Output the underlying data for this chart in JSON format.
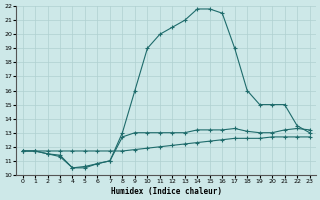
{
  "xlabel": "Humidex (Indice chaleur)",
  "background_color": "#cde8e8",
  "grid_color": "#b0d0d0",
  "line_color": "#1e6b6b",
  "xlim": [
    -0.5,
    23.5
  ],
  "ylim": [
    10,
    22
  ],
  "x_ticks": [
    0,
    1,
    2,
    3,
    4,
    5,
    6,
    7,
    8,
    9,
    10,
    11,
    12,
    13,
    14,
    15,
    16,
    17,
    18,
    19,
    20,
    21,
    22,
    23
  ],
  "y_ticks": [
    10,
    11,
    12,
    13,
    14,
    15,
    16,
    17,
    18,
    19,
    20,
    21,
    22
  ],
  "line_peak_x": [
    0,
    1,
    2,
    3,
    4,
    5,
    6,
    7,
    8,
    9,
    10,
    11,
    12,
    13,
    14,
    15,
    16,
    17,
    18,
    19,
    20,
    21,
    22,
    23
  ],
  "line_peak_y": [
    11.7,
    11.7,
    11.5,
    11.4,
    10.5,
    10.5,
    10.8,
    11.0,
    13.0,
    16.0,
    19.0,
    20.0,
    20.5,
    21.0,
    21.8,
    21.8,
    21.5,
    19.0,
    16.0,
    15.0,
    15.0,
    15.0,
    13.5,
    13.0
  ],
  "line_mid_x": [
    0,
    1,
    2,
    3,
    4,
    5,
    6,
    7,
    8,
    9,
    10,
    11,
    12,
    13,
    14,
    15,
    16,
    17,
    18,
    19,
    20,
    21,
    22,
    23
  ],
  "line_mid_y": [
    11.7,
    11.7,
    11.5,
    11.3,
    10.5,
    10.6,
    10.8,
    11.0,
    12.7,
    13.0,
    13.0,
    13.0,
    13.0,
    13.0,
    13.2,
    13.2,
    13.2,
    13.3,
    13.1,
    13.0,
    13.0,
    13.2,
    13.3,
    13.2
  ],
  "line_flat_x": [
    0,
    1,
    2,
    3,
    4,
    5,
    6,
    7,
    8,
    9,
    10,
    11,
    12,
    13,
    14,
    15,
    16,
    17,
    18,
    19,
    20,
    21,
    22,
    23
  ],
  "line_flat_y": [
    11.7,
    11.7,
    11.7,
    11.7,
    11.7,
    11.7,
    11.7,
    11.7,
    11.7,
    11.8,
    11.9,
    12.0,
    12.1,
    12.2,
    12.3,
    12.4,
    12.5,
    12.6,
    12.6,
    12.6,
    12.7,
    12.7,
    12.7,
    12.7
  ]
}
